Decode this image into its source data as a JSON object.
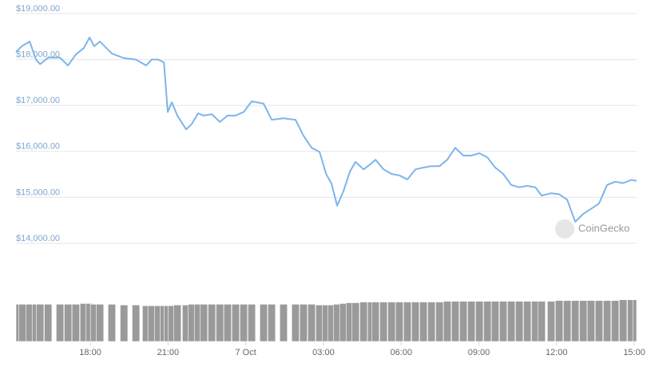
{
  "chart_data": {
    "type": "line",
    "watermark": "CoinGecko",
    "x": [
      15.13,
      15.38,
      15.66,
      15.9,
      16.06,
      16.37,
      16.83,
      17.14,
      17.44,
      17.75,
      17.97,
      18.15,
      18.37,
      18.83,
      19.3,
      19.76,
      20.16,
      20.37,
      20.62,
      20.84,
      20.99,
      21.15,
      21.36,
      21.7,
      21.92,
      22.16,
      22.38,
      22.69,
      23.0,
      23.3,
      23.61,
      23.92,
      24.23,
      24.69,
      25.0,
      25.46,
      25.92,
      26.23,
      26.54,
      26.85,
      27.1,
      27.31,
      27.53,
      27.77,
      28.02,
      28.24,
      28.55,
      28.85,
      29.01,
      29.32,
      29.63,
      29.93,
      30.24,
      30.55,
      30.86,
      31.17,
      31.48,
      31.78,
      32.09,
      32.4,
      32.71,
      33.02,
      33.33,
      33.63,
      33.94,
      34.25,
      34.56,
      34.87,
      35.18,
      35.42,
      35.79,
      36.1,
      36.41,
      36.72,
      37.03,
      37.33,
      37.64,
      37.95,
      38.26,
      38.57,
      38.88,
      39.09
    ],
    "series": [
      {
        "color": "#7cb5ec",
        "values": [
          18170,
          18300,
          18390,
          18000,
          17900,
          18040,
          18040,
          17870,
          18110,
          18250,
          18480,
          18290,
          18390,
          18130,
          18030,
          18000,
          17870,
          18000,
          18000,
          17940,
          16860,
          17070,
          16780,
          16480,
          16600,
          16830,
          16780,
          16810,
          16640,
          16780,
          16780,
          16860,
          17090,
          17040,
          16690,
          16720,
          16690,
          16340,
          16080,
          15990,
          15510,
          15300,
          14820,
          15130,
          15560,
          15770,
          15610,
          15740,
          15820,
          15610,
          15510,
          15480,
          15390,
          15610,
          15650,
          15680,
          15680,
          15820,
          16080,
          15910,
          15910,
          15960,
          15870,
          15650,
          15510,
          15270,
          15220,
          15250,
          15220,
          15040,
          15090,
          15070,
          14950,
          14470,
          14640,
          14750,
          14870,
          15270,
          15340,
          15310,
          15380,
          15360
        ]
      }
    ],
    "volume": {
      "color": "#9a9a9a",
      "ylim": [
        0,
        60
      ],
      "values": [
        50,
        50,
        50,
        50,
        50,
        50,
        50,
        50,
        50,
        51,
        51,
        50,
        50,
        50,
        49,
        49,
        48,
        48,
        48,
        48,
        48,
        48,
        49,
        49,
        50,
        50,
        50,
        50,
        50,
        50,
        50,
        50,
        50,
        50,
        50,
        50,
        50,
        50,
        50,
        49,
        49,
        49,
        50,
        51,
        52,
        52,
        53,
        53,
        53,
        53,
        53,
        53,
        53,
        53,
        53,
        53,
        53,
        54,
        54,
        54,
        54,
        54,
        54,
        54,
        54,
        54,
        54,
        54,
        54,
        54,
        54,
        55,
        55,
        55,
        55,
        55,
        55,
        55,
        55,
        56,
        56,
        56
      ]
    },
    "xlim": [
      15.13,
      39.09
    ],
    "xticks": [
      {
        "value": 18,
        "label": "18:00"
      },
      {
        "value": 21,
        "label": "21:00"
      },
      {
        "value": 24,
        "label": "7 Oct"
      },
      {
        "value": 27,
        "label": "03:00"
      },
      {
        "value": 30,
        "label": "06:00"
      },
      {
        "value": 33,
        "label": "09:00"
      },
      {
        "value": 36,
        "label": "12:00"
      },
      {
        "value": 39,
        "label": "15:00"
      }
    ],
    "ylim": [
      14000,
      19000
    ],
    "yticks": [
      {
        "value": 14000,
        "label": "$14,000.00"
      },
      {
        "value": 15000,
        "label": "$15,000.00"
      },
      {
        "value": 16000,
        "label": "$16,000.00"
      },
      {
        "value": 17000,
        "label": "$17,000.00"
      },
      {
        "value": 18000,
        "label": "$18,000.00"
      },
      {
        "value": 19000,
        "label": "$19,000.00"
      }
    ],
    "grid": true
  }
}
